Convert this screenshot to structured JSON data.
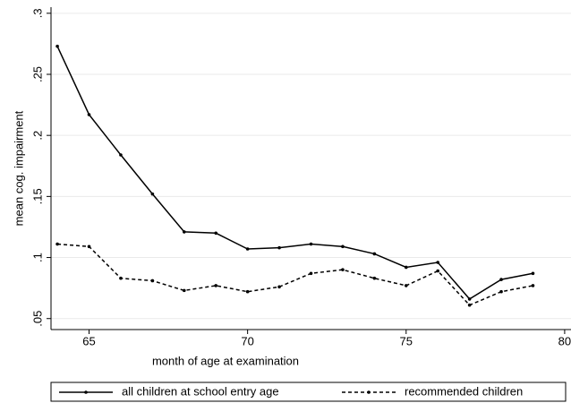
{
  "chart_data": {
    "type": "line",
    "x_label": "month of age at examination",
    "y_label": "mean cog. impairment",
    "x": [
      64,
      65,
      66,
      67,
      68,
      69,
      70,
      71,
      72,
      73,
      74,
      75,
      76,
      77,
      78,
      79
    ],
    "series": [
      {
        "name": "all children at school entry age",
        "color": "#000000",
        "dash": false,
        "values": [
          0.273,
          0.217,
          0.184,
          0.152,
          0.121,
          0.12,
          0.107,
          0.108,
          0.111,
          0.109,
          0.103,
          0.092,
          0.096,
          0.066,
          0.082,
          0.087
        ]
      },
      {
        "name": "recommended children",
        "color": "#000000",
        "dash": true,
        "values": [
          0.111,
          0.109,
          0.083,
          0.081,
          0.073,
          0.077,
          0.072,
          0.076,
          0.087,
          0.09,
          0.083,
          0.077,
          0.089,
          0.061,
          0.072,
          0.077
        ]
      }
    ],
    "xlim": [
      63.8,
      80.2
    ],
    "xticks": [
      65,
      70,
      75,
      80
    ],
    "ylim": [
      0.041,
      0.305
    ],
    "yticks": [
      {
        "value": 0.05,
        "label": ".05"
      },
      {
        "value": 0.1,
        "label": ".1"
      },
      {
        "value": 0.15,
        "label": ".15"
      },
      {
        "value": 0.2,
        "label": ".2"
      },
      {
        "value": 0.25,
        "label": ".25"
      },
      {
        "value": 0.3,
        "label": ".3"
      }
    ],
    "grid": true,
    "legend": "bottom"
  }
}
